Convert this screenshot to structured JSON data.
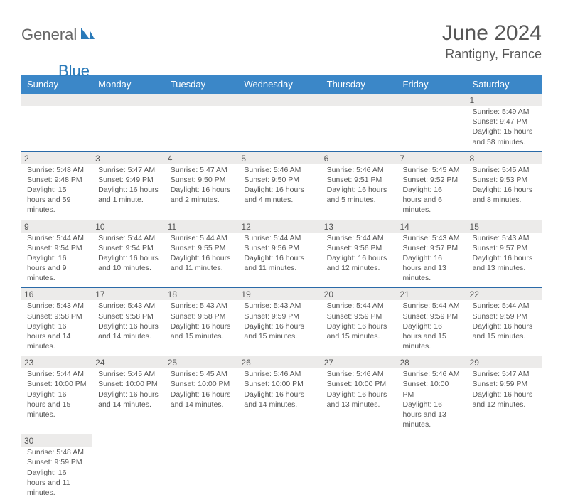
{
  "logo": {
    "text1": "General",
    "text2": "Blue"
  },
  "title": "June 2024",
  "location": "Rantigny, France",
  "colors": {
    "header_bg": "#3b87c8",
    "header_text": "#ffffff",
    "numstrip_bg": "#ecebea",
    "border": "#2a6aa8",
    "logo_gray": "#666666",
    "logo_blue": "#2a7ab9"
  },
  "day_headers": [
    "Sunday",
    "Monday",
    "Tuesday",
    "Wednesday",
    "Thursday",
    "Friday",
    "Saturday"
  ],
  "weeks": [
    [
      null,
      null,
      null,
      null,
      null,
      null,
      {
        "n": "1",
        "sunrise": "Sunrise: 5:49 AM",
        "sunset": "Sunset: 9:47 PM",
        "daylight": "Daylight: 15 hours and 58 minutes."
      }
    ],
    [
      {
        "n": "2",
        "sunrise": "Sunrise: 5:48 AM",
        "sunset": "Sunset: 9:48 PM",
        "daylight": "Daylight: 15 hours and 59 minutes."
      },
      {
        "n": "3",
        "sunrise": "Sunrise: 5:47 AM",
        "sunset": "Sunset: 9:49 PM",
        "daylight": "Daylight: 16 hours and 1 minute."
      },
      {
        "n": "4",
        "sunrise": "Sunrise: 5:47 AM",
        "sunset": "Sunset: 9:50 PM",
        "daylight": "Daylight: 16 hours and 2 minutes."
      },
      {
        "n": "5",
        "sunrise": "Sunrise: 5:46 AM",
        "sunset": "Sunset: 9:50 PM",
        "daylight": "Daylight: 16 hours and 4 minutes."
      },
      {
        "n": "6",
        "sunrise": "Sunrise: 5:46 AM",
        "sunset": "Sunset: 9:51 PM",
        "daylight": "Daylight: 16 hours and 5 minutes."
      },
      {
        "n": "7",
        "sunrise": "Sunrise: 5:45 AM",
        "sunset": "Sunset: 9:52 PM",
        "daylight": "Daylight: 16 hours and 6 minutes."
      },
      {
        "n": "8",
        "sunrise": "Sunrise: 5:45 AM",
        "sunset": "Sunset: 9:53 PM",
        "daylight": "Daylight: 16 hours and 8 minutes."
      }
    ],
    [
      {
        "n": "9",
        "sunrise": "Sunrise: 5:44 AM",
        "sunset": "Sunset: 9:54 PM",
        "daylight": "Daylight: 16 hours and 9 minutes."
      },
      {
        "n": "10",
        "sunrise": "Sunrise: 5:44 AM",
        "sunset": "Sunset: 9:54 PM",
        "daylight": "Daylight: 16 hours and 10 minutes."
      },
      {
        "n": "11",
        "sunrise": "Sunrise: 5:44 AM",
        "sunset": "Sunset: 9:55 PM",
        "daylight": "Daylight: 16 hours and 11 minutes."
      },
      {
        "n": "12",
        "sunrise": "Sunrise: 5:44 AM",
        "sunset": "Sunset: 9:56 PM",
        "daylight": "Daylight: 16 hours and 11 minutes."
      },
      {
        "n": "13",
        "sunrise": "Sunrise: 5:44 AM",
        "sunset": "Sunset: 9:56 PM",
        "daylight": "Daylight: 16 hours and 12 minutes."
      },
      {
        "n": "14",
        "sunrise": "Sunrise: 5:43 AM",
        "sunset": "Sunset: 9:57 PM",
        "daylight": "Daylight: 16 hours and 13 minutes."
      },
      {
        "n": "15",
        "sunrise": "Sunrise: 5:43 AM",
        "sunset": "Sunset: 9:57 PM",
        "daylight": "Daylight: 16 hours and 13 minutes."
      }
    ],
    [
      {
        "n": "16",
        "sunrise": "Sunrise: 5:43 AM",
        "sunset": "Sunset: 9:58 PM",
        "daylight": "Daylight: 16 hours and 14 minutes."
      },
      {
        "n": "17",
        "sunrise": "Sunrise: 5:43 AM",
        "sunset": "Sunset: 9:58 PM",
        "daylight": "Daylight: 16 hours and 14 minutes."
      },
      {
        "n": "18",
        "sunrise": "Sunrise: 5:43 AM",
        "sunset": "Sunset: 9:58 PM",
        "daylight": "Daylight: 16 hours and 15 minutes."
      },
      {
        "n": "19",
        "sunrise": "Sunrise: 5:43 AM",
        "sunset": "Sunset: 9:59 PM",
        "daylight": "Daylight: 16 hours and 15 minutes."
      },
      {
        "n": "20",
        "sunrise": "Sunrise: 5:44 AM",
        "sunset": "Sunset: 9:59 PM",
        "daylight": "Daylight: 16 hours and 15 minutes."
      },
      {
        "n": "21",
        "sunrise": "Sunrise: 5:44 AM",
        "sunset": "Sunset: 9:59 PM",
        "daylight": "Daylight: 16 hours and 15 minutes."
      },
      {
        "n": "22",
        "sunrise": "Sunrise: 5:44 AM",
        "sunset": "Sunset: 9:59 PM",
        "daylight": "Daylight: 16 hours and 15 minutes."
      }
    ],
    [
      {
        "n": "23",
        "sunrise": "Sunrise: 5:44 AM",
        "sunset": "Sunset: 10:00 PM",
        "daylight": "Daylight: 16 hours and 15 minutes."
      },
      {
        "n": "24",
        "sunrise": "Sunrise: 5:45 AM",
        "sunset": "Sunset: 10:00 PM",
        "daylight": "Daylight: 16 hours and 14 minutes."
      },
      {
        "n": "25",
        "sunrise": "Sunrise: 5:45 AM",
        "sunset": "Sunset: 10:00 PM",
        "daylight": "Daylight: 16 hours and 14 minutes."
      },
      {
        "n": "26",
        "sunrise": "Sunrise: 5:46 AM",
        "sunset": "Sunset: 10:00 PM",
        "daylight": "Daylight: 16 hours and 14 minutes."
      },
      {
        "n": "27",
        "sunrise": "Sunrise: 5:46 AM",
        "sunset": "Sunset: 10:00 PM",
        "daylight": "Daylight: 16 hours and 13 minutes."
      },
      {
        "n": "28",
        "sunrise": "Sunrise: 5:46 AM",
        "sunset": "Sunset: 10:00 PM",
        "daylight": "Daylight: 16 hours and 13 minutes."
      },
      {
        "n": "29",
        "sunrise": "Sunrise: 5:47 AM",
        "sunset": "Sunset: 9:59 PM",
        "daylight": "Daylight: 16 hours and 12 minutes."
      }
    ],
    [
      {
        "n": "30",
        "sunrise": "Sunrise: 5:48 AM",
        "sunset": "Sunset: 9:59 PM",
        "daylight": "Daylight: 16 hours and 11 minutes."
      },
      null,
      null,
      null,
      null,
      null,
      null
    ]
  ]
}
